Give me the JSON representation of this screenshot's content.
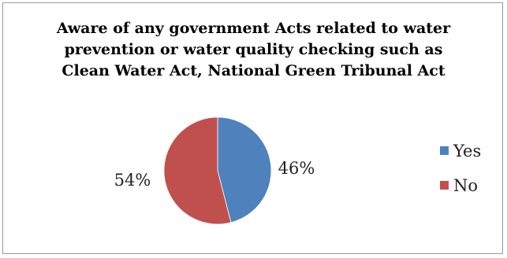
{
  "chart_data": {
    "type": "pie",
    "title_lines": [
      "Aware of any government Acts related to water",
      "prevention or water quality checking such as",
      "Clean Water Act, National Green Tribunal Act"
    ],
    "categories": [
      "Yes",
      "No"
    ],
    "values": [
      46,
      54
    ],
    "value_labels": [
      "46%",
      "54%"
    ],
    "colors": [
      "#4F81BD",
      "#C0504D"
    ],
    "legend_position": "right"
  }
}
